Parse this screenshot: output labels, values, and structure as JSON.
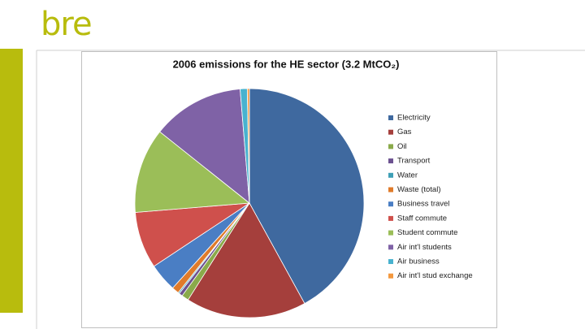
{
  "logo": "bre",
  "chart_data": {
    "type": "pie",
    "title": "2006 emissions for the HE sector (3.2 MtCO₂)",
    "categories": [
      "Electricity",
      "Gas",
      "Oil",
      "Transport",
      "Water",
      "Waste (total)",
      "Business travel",
      "Staff commute",
      "Student commute",
      "Air int'l students",
      "Air business",
      "Air int'l stud exchange"
    ],
    "values": [
      42,
      17,
      1,
      0.5,
      0.2,
      1,
      4,
      8,
      12,
      13,
      1,
      0.3
    ],
    "colors": [
      "#3f699f",
      "#a53f3c",
      "#8aaa4a",
      "#6c5190",
      "#3e9fb6",
      "#e07b2a",
      "#4a7ec4",
      "#cf504c",
      "#9bbe58",
      "#7f62a6",
      "#48b2cf",
      "#f4993f"
    ],
    "legend": "right"
  }
}
